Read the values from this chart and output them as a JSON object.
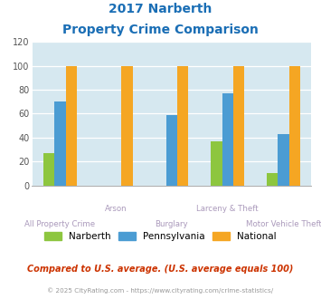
{
  "title_line1": "2017 Narberth",
  "title_line2": "Property Crime Comparison",
  "categories": [
    "All Property Crime",
    "Arson",
    "Burglary",
    "Larceny & Theft",
    "Motor Vehicle Theft"
  ],
  "label_row": [
    2,
    1,
    2,
    1,
    2
  ],
  "series": {
    "Narberth": [
      27,
      0,
      0,
      37,
      10
    ],
    "Pennsylvania": [
      70,
      0,
      59,
      77,
      43
    ],
    "National": [
      100,
      100,
      100,
      100,
      100
    ]
  },
  "colors": {
    "Narberth": "#8dc63f",
    "Pennsylvania": "#4b9cd3",
    "National": "#f5a623"
  },
  "ylim": [
    0,
    120
  ],
  "yticks": [
    0,
    20,
    40,
    60,
    80,
    100,
    120
  ],
  "bg_color": "#d6e8f0",
  "title_color": "#1a6eb5",
  "xlabel_color": "#aa99bb",
  "legend_label_color": "#333333",
  "footer_text": "Compared to U.S. average. (U.S. average equals 100)",
  "copyright_text": "© 2025 CityRating.com - https://www.cityrating.com/crime-statistics/",
  "footer_color": "#cc3300",
  "copyright_color": "#999999",
  "bar_width": 0.2
}
